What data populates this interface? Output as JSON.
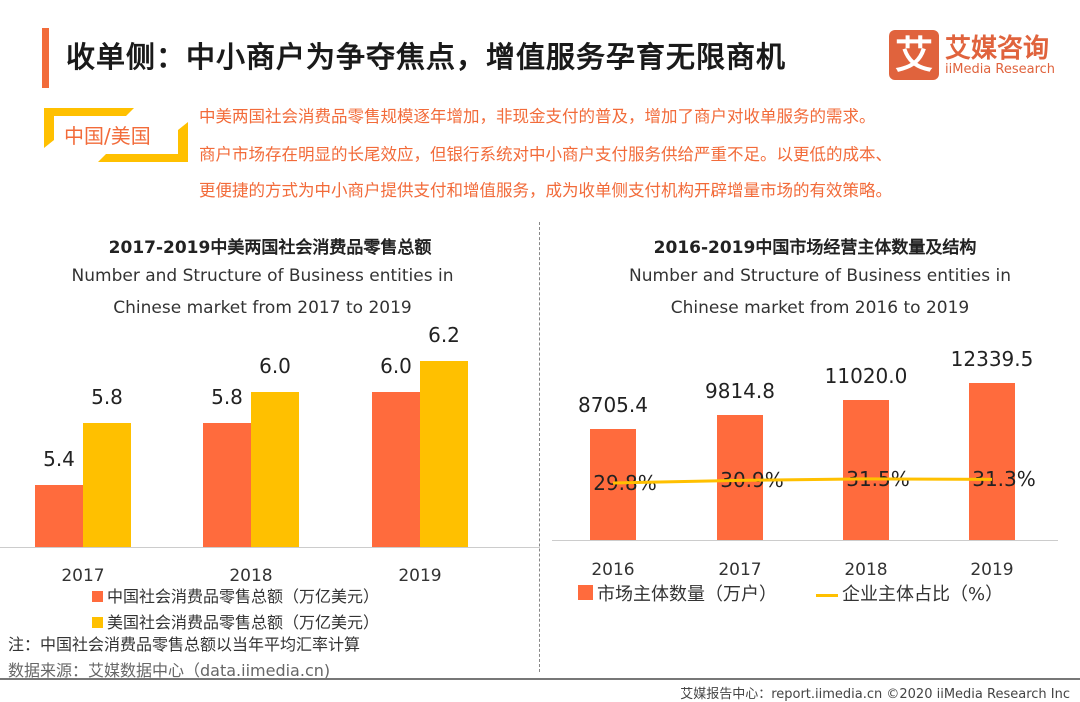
{
  "header": {
    "title": "收单侧：中小商户为争夺焦点，增值服务孕育无限商机",
    "logo_mark": "艾",
    "logo_cn": "艾媒咨询",
    "logo_en": "iiMedia Research"
  },
  "intro": {
    "tag": "中国/美国",
    "lines": [
      "中美两国社会消费品零售规模逐年增加，非现金支付的普及，增加了商户对收单服务的需求。",
      "商户市场存在明显的长尾效应，但银行系统对中小商户支付服务供给严重不足。以更低的成本、",
      "更便捷的方式为中小商户提供支付和增值服务，成为收单侧支付机构开辟增量市场的有效策略。"
    ]
  },
  "colors": {
    "china": "#ff6b3d",
    "us": "#ffc000",
    "line": "#ffc000",
    "accent": "#f26b3a"
  },
  "chart_data": [
    {
      "type": "bar",
      "title": "2017-2019中美两国社会消费品零售总额",
      "subtitle": [
        "Number and Structure of Business entities in",
        "Chinese market from 2017 to 2019"
      ],
      "categories": [
        "2017",
        "2018",
        "2019"
      ],
      "series": [
        {
          "name": "中国社会消费品零售总额（万亿美元）",
          "values": [
            5.4,
            5.8,
            6.0
          ]
        },
        {
          "name": "美国社会消费品零售总额（万亿美元）",
          "values": [
            5.8,
            6.0,
            6.2
          ]
        }
      ],
      "ylim": [
        5.0,
        6.4
      ],
      "legend": "bottom-left"
    },
    {
      "type": "bar+line",
      "title": "2016-2019中国市场经营主体数量及结构",
      "subtitle": [
        "Number and Structure of Business entities in",
        "Chinese market from 2016 to 2019"
      ],
      "categories": [
        "2016",
        "2017",
        "2018",
        "2019"
      ],
      "series": [
        {
          "name": "市场主体数量（万户）",
          "type": "bar",
          "values": [
            8705.4,
            9814.8,
            11020.0,
            12339.5
          ],
          "labels": [
            "8705.4",
            "9814.8",
            "11020.0",
            "12339.5"
          ]
        },
        {
          "name": "企业主体占比（%）",
          "type": "line",
          "values": [
            29.8,
            30.9,
            31.5,
            31.3
          ],
          "labels": [
            "29.8%",
            "30.9%",
            "31.5%",
            "31.3%"
          ]
        }
      ],
      "ylim": [
        0,
        13000
      ],
      "legend": "bottom"
    }
  ],
  "notes": {
    "note": "注：中国社会消费品零售总额以当年平均汇率计算",
    "source": "数据来源：艾媒数据中心（data.iimedia.cn)",
    "footer": "艾媒报告中心：report.iimedia.cn   ©2020  iiMedia Research  Inc"
  }
}
